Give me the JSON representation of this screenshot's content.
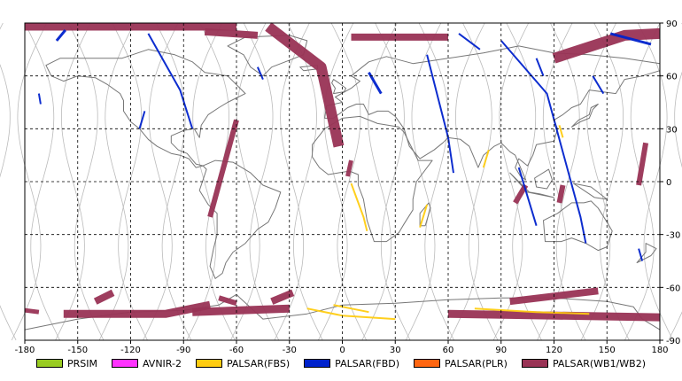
{
  "colors": {
    "PRSIM": "#99cc22",
    "AVNIR-2": "#ff33ff",
    "PALSAR(FBS)": "#ffcc11",
    "PALSAR(FBD)": "#0022cc",
    "PALSAR(PLR)": "#ff6611",
    "PALSAR(WB1/WB2)": "#993355",
    "coast": "#777777",
    "orbit": "#bbbbbb"
  },
  "chart_data": {
    "type": "map",
    "projection": "equirectangular",
    "grid": "dashed",
    "xlim": [
      -180,
      180
    ],
    "ylim": [
      -90,
      90
    ],
    "x_ticks": [
      "-180",
      "-150",
      "-120",
      "-90",
      "-60",
      "-30",
      "0",
      "30",
      "60",
      "90",
      "120",
      "150",
      "180"
    ],
    "y_ticks": [
      "90",
      "60",
      "30",
      "0",
      "-30",
      "-60",
      "-90"
    ],
    "legend": [
      "PRSIM",
      "AVNIR-2",
      "PALSAR(FBS)",
      "PALSAR(FBD)",
      "PALSAR(PLR)",
      "PALSAR(WB1/WB2)"
    ],
    "legend_position": "bottom",
    "swaths": [
      {
        "sensor": "PALSAR(WB1/WB2)",
        "path": [
          [
            -60,
            35
          ],
          [
            -75,
            -20
          ]
        ],
        "width": 6
      },
      {
        "sensor": "PALSAR(WB1/WB2)",
        "path": [
          [
            -42,
            88
          ],
          [
            -12,
            65
          ],
          [
            -2,
            20
          ]
        ],
        "width": 12
      },
      {
        "sensor": "PALSAR(WB1/WB2)",
        "path": [
          [
            -180,
            88
          ],
          [
            -60,
            88
          ]
        ],
        "width": 9
      },
      {
        "sensor": "PALSAR(WB1/WB2)",
        "path": [
          [
            -78,
            85
          ],
          [
            -48,
            83
          ]
        ],
        "width": 8
      },
      {
        "sensor": "PALSAR(WB1/WB2)",
        "path": [
          [
            5,
            82
          ],
          [
            60,
            82
          ]
        ],
        "width": 8
      },
      {
        "sensor": "PALSAR(WB1/WB2)",
        "path": [
          [
            120,
            70
          ],
          [
            160,
            83
          ],
          [
            180,
            84
          ]
        ],
        "width": 12
      },
      {
        "sensor": "PALSAR(WB1/WB2)",
        "path": [
          [
            104,
            -2
          ],
          [
            98,
            -12
          ]
        ],
        "width": 6
      },
      {
        "sensor": "PALSAR(WB1/WB2)",
        "path": [
          [
            125,
            -2
          ],
          [
            123,
            -12
          ]
        ],
        "width": 6
      },
      {
        "sensor": "PALSAR(WB1/WB2)",
        "path": [
          [
            172,
            22
          ],
          [
            168,
            -2
          ]
        ],
        "width": 6
      },
      {
        "sensor": "PALSAR(WB1/WB2)",
        "path": [
          [
            5,
            12
          ],
          [
            3,
            3
          ]
        ],
        "width": 5
      },
      {
        "sensor": "PALSAR(WB1/WB2)",
        "path": [
          [
            -158,
            -75
          ],
          [
            -100,
            -75
          ],
          [
            -75,
            -70
          ]
        ],
        "width": 9
      },
      {
        "sensor": "PALSAR(WB1/WB2)",
        "path": [
          [
            -85,
            -74
          ],
          [
            -30,
            -72
          ]
        ],
        "width": 9
      },
      {
        "sensor": "PALSAR(WB1/WB2)",
        "path": [
          [
            -140,
            -68
          ],
          [
            -130,
            -63
          ]
        ],
        "width": 8
      },
      {
        "sensor": "PALSAR(WB1/WB2)",
        "path": [
          [
            -40,
            -68
          ],
          [
            -28,
            -63
          ]
        ],
        "width": 8
      },
      {
        "sensor": "PALSAR(WB1/WB2)",
        "path": [
          [
            -60,
            -69
          ],
          [
            -70,
            -66
          ]
        ],
        "width": 6
      },
      {
        "sensor": "PALSAR(WB1/WB2)",
        "path": [
          [
            60,
            -75
          ],
          [
            180,
            -77
          ]
        ],
        "width": 9
      },
      {
        "sensor": "PALSAR(WB1/WB2)",
        "path": [
          [
            95,
            -68
          ],
          [
            145,
            -62
          ]
        ],
        "width": 8
      },
      {
        "sensor": "PALSAR(WB1/WB2)",
        "path": [
          [
            -180,
            -73
          ],
          [
            -172,
            -74
          ]
        ],
        "width": 5
      },
      {
        "sensor": "PALSAR(FBD)",
        "path": [
          [
            -162,
            80
          ],
          [
            -157,
            86
          ]
        ],
        "width": 3
      },
      {
        "sensor": "PALSAR(FBD)",
        "path": [
          [
            -110,
            84
          ],
          [
            -92,
            52
          ],
          [
            -85,
            30
          ]
        ],
        "width": 2
      },
      {
        "sensor": "PALSAR(FBD)",
        "path": [
          [
            -112,
            40
          ],
          [
            -115,
            30
          ]
        ],
        "width": 2
      },
      {
        "sensor": "PALSAR(FBD)",
        "path": [
          [
            -48,
            65
          ],
          [
            -45,
            58
          ]
        ],
        "width": 2
      },
      {
        "sensor": "PALSAR(FBD)",
        "path": [
          [
            -172,
            50
          ],
          [
            -171,
            44
          ]
        ],
        "width": 2
      },
      {
        "sensor": "PALSAR(FBD)",
        "path": [
          [
            15,
            62
          ],
          [
            22,
            50
          ]
        ],
        "width": 3
      },
      {
        "sensor": "PALSAR(FBD)",
        "path": [
          [
            48,
            72
          ],
          [
            60,
            25
          ],
          [
            63,
            5
          ]
        ],
        "width": 2
      },
      {
        "sensor": "PALSAR(FBD)",
        "path": [
          [
            90,
            80
          ],
          [
            116,
            50
          ],
          [
            135,
            -20
          ],
          [
            138,
            -35
          ]
        ],
        "width": 2
      },
      {
        "sensor": "PALSAR(FBD)",
        "path": [
          [
            152,
            84
          ],
          [
            175,
            78
          ]
        ],
        "width": 3
      },
      {
        "sensor": "PALSAR(FBD)",
        "path": [
          [
            66,
            84
          ],
          [
            78,
            75
          ]
        ],
        "width": 2
      },
      {
        "sensor": "PALSAR(FBD)",
        "path": [
          [
            110,
            70
          ],
          [
            114,
            60
          ]
        ],
        "width": 2
      },
      {
        "sensor": "PALSAR(FBD)",
        "path": [
          [
            100,
            8
          ],
          [
            110,
            -25
          ]
        ],
        "width": 2
      },
      {
        "sensor": "PALSAR(FBD)",
        "path": [
          [
            168,
            -38
          ],
          [
            170,
            -45
          ]
        ],
        "width": 2
      },
      {
        "sensor": "PALSAR(FBD)",
        "path": [
          [
            142,
            60
          ],
          [
            148,
            50
          ]
        ],
        "width": 2
      },
      {
        "sensor": "PALSAR(FBS)",
        "path": [
          [
            5,
            -1
          ],
          [
            12,
            -20
          ],
          [
            14,
            -28
          ]
        ],
        "width": 2
      },
      {
        "sensor": "PALSAR(FBS)",
        "path": [
          [
            44,
            -26
          ],
          [
            48,
            -13
          ]
        ],
        "width": 2
      },
      {
        "sensor": "PALSAR(FBS)",
        "path": [
          [
            -20,
            -72
          ],
          [
            0,
            -76
          ],
          [
            30,
            -78
          ]
        ],
        "width": 2
      },
      {
        "sensor": "PALSAR(FBS)",
        "path": [
          [
            -5,
            -70
          ],
          [
            15,
            -74
          ]
        ],
        "width": 2
      },
      {
        "sensor": "PALSAR(FBS)",
        "path": [
          [
            75,
            -72
          ],
          [
            110,
            -74
          ],
          [
            140,
            -75
          ]
        ],
        "width": 2
      },
      {
        "sensor": "PALSAR(FBS)",
        "path": [
          [
            80,
            8
          ],
          [
            83,
            18
          ]
        ],
        "width": 2
      },
      {
        "sensor": "PALSAR(FBS)",
        "path": [
          [
            123,
            32
          ],
          [
            125,
            25
          ]
        ],
        "width": 2
      }
    ]
  }
}
